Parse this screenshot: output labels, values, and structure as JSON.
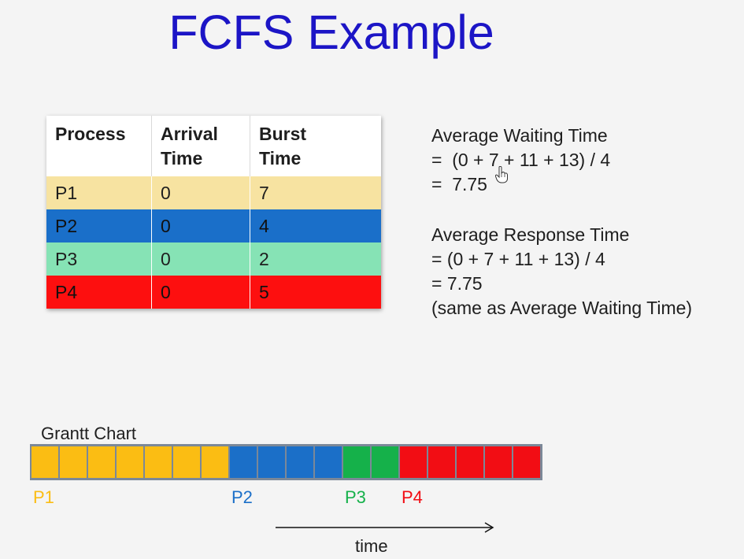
{
  "title": "FCFS Example",
  "table": {
    "headers": [
      {
        "line1": "Process",
        "line2": ""
      },
      {
        "line1": "Arrival",
        "line2": "Time"
      },
      {
        "line1": "Burst",
        "line2": "Time"
      }
    ],
    "rows": [
      {
        "process": "P1",
        "arrival": "0",
        "burst": "7",
        "color": "#f7e3a1",
        "text_color": "#1e1e1e"
      },
      {
        "process": "P2",
        "arrival": "0",
        "burst": "4",
        "color": "#1a6fc9",
        "text_color": "#111111"
      },
      {
        "process": "P3",
        "arrival": "0",
        "burst": "2",
        "color": "#86e3b5",
        "text_color": "#1e1e1e"
      },
      {
        "process": "P4",
        "arrival": "0",
        "burst": "5",
        "color": "#fd0f0f",
        "text_color": "#111111"
      }
    ]
  },
  "stats": {
    "waiting_title": "Average Waiting Time",
    "waiting_formula": "=  (0 + 7 + 11 + 13) / 4",
    "waiting_result": "=  7.75",
    "response_title": "Average Response Time",
    "response_formula": "= (0 + 7 + 11 + 13) / 4",
    "response_result": "= 7.75",
    "response_note": "(same as Average Waiting Time)"
  },
  "gantt": {
    "label": "Grantt Chart",
    "segments": [
      {
        "process": "P1",
        "units": 7,
        "color": "#fbbd13"
      },
      {
        "process": "P2",
        "units": 4,
        "color": "#1b6fc8"
      },
      {
        "process": "P3",
        "units": 2,
        "color": "#15b14a"
      },
      {
        "process": "P4",
        "units": 5,
        "color": "#f20d14"
      }
    ],
    "time_label": "time"
  }
}
